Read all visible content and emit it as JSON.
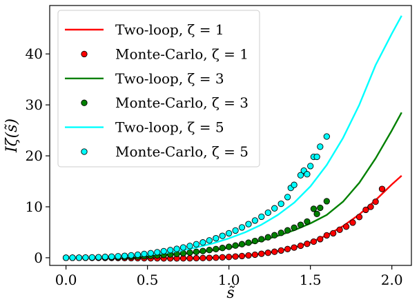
{
  "chart_data": {
    "type": "line",
    "title": "",
    "xlabel": "s̃",
    "ylabel": "Iζ(s̃)",
    "xlim": [
      -0.1,
      2.12
    ],
    "ylim": [
      -1.5,
      49.5
    ],
    "xticks": [
      0.0,
      0.5,
      1.0,
      1.5,
      2.0
    ],
    "xtick_labels": [
      "0.0",
      "0.5",
      "1.0",
      "1.5",
      "2.0"
    ],
    "yticks": [
      0,
      10,
      20,
      30,
      40
    ],
    "ytick_labels": [
      "0",
      "10",
      "20",
      "30",
      "40"
    ],
    "grid": false,
    "legend_position": "top-left",
    "series": [
      {
        "name": "Two-loop, ζ = 1",
        "kind": "line",
        "color": "#ff0000",
        "x": [
          0.0,
          0.1,
          0.2,
          0.3,
          0.4,
          0.5,
          0.6,
          0.7,
          0.8,
          0.9,
          1.0,
          1.1,
          1.2,
          1.3,
          1.4,
          1.5,
          1.6,
          1.7,
          1.8,
          1.9,
          2.0,
          2.06
        ],
        "values": [
          0.0,
          0.0,
          -0.01,
          -0.03,
          -0.06,
          -0.1,
          -0.12,
          -0.12,
          -0.08,
          0.0,
          0.15,
          0.4,
          0.78,
          1.3,
          2.0,
          3.0,
          4.4,
          6.2,
          8.5,
          11.3,
          14.4,
          16.1
        ]
      },
      {
        "name": "Monte-Carlo, ζ = 1",
        "kind": "scatter",
        "color": "#ff0000",
        "x": [
          0.0,
          0.04,
          0.08,
          0.12,
          0.16,
          0.2,
          0.24,
          0.28,
          0.32,
          0.36,
          0.4,
          0.44,
          0.48,
          0.52,
          0.56,
          0.6,
          0.64,
          0.68,
          0.72,
          0.76,
          0.8,
          0.84,
          0.88,
          0.92,
          0.96,
          1.0,
          1.04,
          1.08,
          1.12,
          1.16,
          1.2,
          1.24,
          1.28,
          1.32,
          1.36,
          1.4,
          1.44,
          1.48,
          1.52,
          1.56,
          1.6,
          1.64,
          1.68,
          1.72,
          1.76,
          1.8,
          1.84,
          1.87,
          1.9,
          1.94
        ],
        "values": [
          0.0,
          0.0,
          0.0,
          0.0,
          -0.01,
          -0.01,
          -0.02,
          -0.03,
          -0.04,
          -0.05,
          -0.06,
          -0.08,
          -0.09,
          -0.1,
          -0.11,
          -0.12,
          -0.12,
          -0.12,
          -0.11,
          -0.1,
          -0.08,
          -0.05,
          -0.02,
          0.02,
          0.08,
          0.15,
          0.24,
          0.34,
          0.46,
          0.6,
          0.78,
          0.97,
          1.18,
          1.42,
          1.7,
          2.0,
          2.35,
          2.74,
          3.17,
          3.66,
          4.4,
          4.8,
          5.5,
          6.1,
          6.9,
          8.0,
          9.4,
          10.0,
          11.0,
          13.5
        ]
      },
      {
        "name": "Two-loop, ζ = 3",
        "kind": "line",
        "color": "#008000",
        "x": [
          0.0,
          0.1,
          0.2,
          0.3,
          0.4,
          0.5,
          0.6,
          0.7,
          0.8,
          0.9,
          1.0,
          1.1,
          1.2,
          1.3,
          1.4,
          1.5,
          1.6,
          1.7,
          1.8,
          1.9,
          2.0,
          2.06
        ],
        "values": [
          0.0,
          0.0,
          0.02,
          0.06,
          0.14,
          0.27,
          0.45,
          0.7,
          1.03,
          1.45,
          1.97,
          2.6,
          3.37,
          4.3,
          5.4,
          6.75,
          8.4,
          11.0,
          14.7,
          19.5,
          25.0,
          28.5
        ]
      },
      {
        "name": "Monte-Carlo, ζ = 3",
        "kind": "scatter",
        "color": "#008000",
        "x": [
          0.0,
          0.04,
          0.08,
          0.12,
          0.16,
          0.2,
          0.24,
          0.28,
          0.32,
          0.36,
          0.4,
          0.44,
          0.48,
          0.52,
          0.56,
          0.6,
          0.64,
          0.68,
          0.72,
          0.76,
          0.8,
          0.84,
          0.88,
          0.92,
          0.96,
          1.0,
          1.04,
          1.08,
          1.12,
          1.16,
          1.2,
          1.24,
          1.28,
          1.32,
          1.36,
          1.4,
          1.44,
          1.48,
          1.52,
          1.54,
          1.56,
          1.6
        ],
        "values": [
          0.0,
          0.0,
          0.0,
          0.01,
          0.02,
          0.03,
          0.05,
          0.08,
          0.11,
          0.15,
          0.2,
          0.25,
          0.31,
          0.38,
          0.46,
          0.55,
          0.65,
          0.76,
          0.88,
          1.02,
          1.17,
          1.33,
          1.51,
          1.71,
          1.92,
          2.15,
          2.4,
          2.67,
          2.97,
          3.29,
          3.64,
          4.02,
          4.43,
          4.88,
          5.37,
          5.9,
          6.47,
          7.1,
          9.6,
          8.6,
          9.8,
          11.1
        ]
      },
      {
        "name": "Two-loop, ζ = 5",
        "kind": "line",
        "color": "#00ffff",
        "x": [
          0.0,
          0.1,
          0.2,
          0.3,
          0.4,
          0.5,
          0.6,
          0.7,
          0.8,
          0.9,
          1.0,
          1.1,
          1.2,
          1.3,
          1.4,
          1.5,
          1.6,
          1.7,
          1.8,
          1.9,
          2.0,
          2.06
        ],
        "values": [
          0.0,
          0.01,
          0.05,
          0.14,
          0.3,
          0.55,
          0.9,
          1.38,
          2.0,
          2.8,
          3.8,
          5.0,
          6.5,
          8.4,
          10.8,
          14.0,
          18.2,
          23.5,
          30.0,
          37.8,
          44.0,
          47.5
        ]
      },
      {
        "name": "Monte-Carlo, ζ = 5",
        "kind": "scatter",
        "color": "#00ffff",
        "x": [
          0.0,
          0.04,
          0.08,
          0.12,
          0.16,
          0.2,
          0.24,
          0.28,
          0.32,
          0.36,
          0.4,
          0.44,
          0.48,
          0.52,
          0.56,
          0.6,
          0.64,
          0.68,
          0.72,
          0.76,
          0.8,
          0.84,
          0.88,
          0.92,
          0.96,
          1.0,
          1.04,
          1.08,
          1.12,
          1.16,
          1.2,
          1.24,
          1.28,
          1.32,
          1.36,
          1.38,
          1.4,
          1.44,
          1.46,
          1.48,
          1.5,
          1.52,
          1.54,
          1.56,
          1.6
        ],
        "values": [
          0.0,
          0.01,
          0.02,
          0.04,
          0.07,
          0.11,
          0.16,
          0.22,
          0.29,
          0.38,
          0.48,
          0.6,
          0.74,
          0.9,
          1.08,
          1.28,
          1.5,
          1.75,
          2.02,
          2.32,
          2.65,
          3.01,
          3.4,
          3.83,
          4.3,
          4.8,
          5.35,
          5.95,
          6.6,
          7.3,
          8.05,
          8.85,
          9.7,
          10.6,
          11.9,
          13.7,
          14.3,
          16.2,
          17.1,
          16.4,
          18.0,
          19.8,
          19.8,
          21.8,
          23.8
        ]
      }
    ]
  }
}
